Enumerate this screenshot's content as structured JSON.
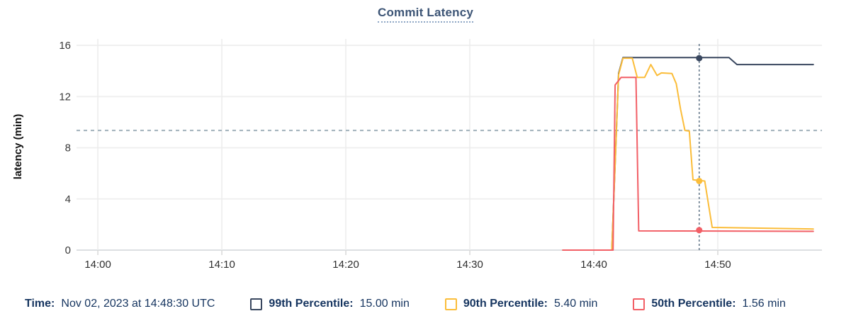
{
  "legend": {
    "time": {
      "label": "Time:",
      "value": "Nov 02, 2023 at 14:48:30 UTC"
    },
    "items": [
      {
        "label": "99th Percentile:",
        "value": "15.00 min"
      },
      {
        "label": "90th Percentile:",
        "value": "5.40 min"
      },
      {
        "label": "50th Percentile:",
        "value": "1.56 min"
      }
    ]
  },
  "chart_data": {
    "type": "line",
    "title": "Commit Latency",
    "ylabel": "latency (min)",
    "xlabel": "",
    "x_unit": "minutes after 14:00 UTC, Nov 02 2023",
    "xlim": [
      -1.72,
      58.4
    ],
    "ylim": [
      0,
      16.5
    ],
    "yticks": [
      0,
      4,
      8,
      12,
      16
    ],
    "xticks": [
      {
        "minute": 0,
        "label": "14:00"
      },
      {
        "minute": 10,
        "label": "14:10"
      },
      {
        "minute": 20,
        "label": "14:20"
      },
      {
        "minute": 30,
        "label": "14:30"
      },
      {
        "minute": 40,
        "label": "14:40"
      },
      {
        "minute": 50,
        "label": "14:50"
      }
    ],
    "grid": true,
    "legend_position": "bottom",
    "threshold_line": {
      "value": 9.35,
      "color": "#9fb0ba",
      "style": "dashed"
    },
    "cursor": {
      "minute": 48.5,
      "time_label": "14:48:30",
      "color": "#5f7386",
      "values": [
        15.0,
        5.4,
        1.56
      ]
    },
    "series": [
      {
        "name": "99th Percentile",
        "color": "#39475f",
        "points": [
          [
            37.5,
            0
          ],
          [
            41.45,
            0
          ],
          [
            42.0,
            13.8
          ],
          [
            42.35,
            15.05
          ],
          [
            50.9,
            15.05
          ],
          [
            51.55,
            14.5
          ],
          [
            57.7,
            14.5
          ]
        ]
      },
      {
        "name": "90th Percentile",
        "color": "#fbbd3a",
        "points": [
          [
            37.5,
            0
          ],
          [
            41.45,
            0
          ],
          [
            42.0,
            13.7
          ],
          [
            42.35,
            15.0
          ],
          [
            43.1,
            15.0
          ],
          [
            43.5,
            13.5
          ],
          [
            44.1,
            13.5
          ],
          [
            44.6,
            14.5
          ],
          [
            45.1,
            13.65
          ],
          [
            45.45,
            13.85
          ],
          [
            46.3,
            13.8
          ],
          [
            46.65,
            13.0
          ],
          [
            47.0,
            11.0
          ],
          [
            47.35,
            9.35
          ],
          [
            47.7,
            9.3
          ],
          [
            48.0,
            5.5
          ],
          [
            48.95,
            5.4
          ],
          [
            49.55,
            1.77
          ],
          [
            53.0,
            1.72
          ],
          [
            57.7,
            1.65
          ]
        ]
      },
      {
        "name": "50th Percentile",
        "color": "#f25f66",
        "points": [
          [
            37.5,
            0
          ],
          [
            41.55,
            0
          ],
          [
            41.72,
            12.9
          ],
          [
            42.2,
            13.5
          ],
          [
            43.4,
            13.5
          ],
          [
            43.62,
            1.5
          ],
          [
            57.7,
            1.47
          ]
        ]
      }
    ]
  }
}
